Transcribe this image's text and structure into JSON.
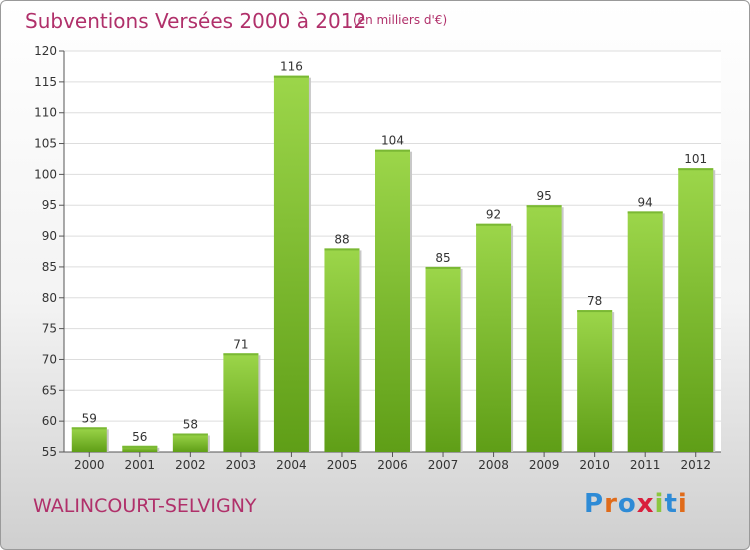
{
  "title": "Subventions Versées 2000 à 2012",
  "unit_note": "(en milliers d'€)",
  "commune": "WALINCOURT-SELVIGNY",
  "logo": {
    "text": "Proxiti",
    "letter_colors": [
      "#2e8bd6",
      "#e06b1a",
      "#2e8bd6",
      "#d91f3c",
      "#8cc63f",
      "#2e8bd6",
      "#e06b1a"
    ]
  },
  "colors": {
    "bar_light": "#9cd64a",
    "bar_dark": "#5f9e17",
    "text": "#b0306a",
    "axis": "#555555",
    "grid": "#dddddd"
  },
  "chart_data": {
    "type": "bar",
    "categories": [
      "2000",
      "2001",
      "2002",
      "2003",
      "2004",
      "2005",
      "2006",
      "2007",
      "2008",
      "2009",
      "2010",
      "2011",
      "2012"
    ],
    "values": [
      59,
      56,
      58,
      71,
      116,
      88,
      104,
      85,
      92,
      95,
      78,
      94,
      101
    ],
    "ylim": [
      55,
      120
    ],
    "yticks": [
      55,
      60,
      65,
      70,
      75,
      80,
      85,
      90,
      95,
      100,
      105,
      110,
      115,
      120
    ],
    "grid": true
  }
}
